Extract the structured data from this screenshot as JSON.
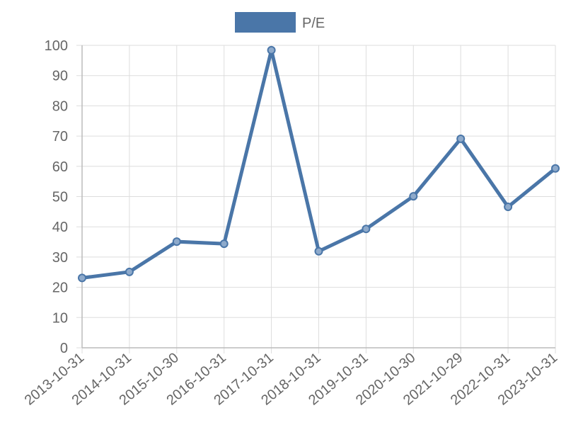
{
  "chart_data": {
    "type": "line",
    "categories": [
      "2013-10-31",
      "2014-10-31",
      "2015-10-30",
      "2016-10-31",
      "2017-10-31",
      "2018-10-31",
      "2019-10-31",
      "2020-10-30",
      "2021-10-29",
      "2022-10-31",
      "2023-10-31"
    ],
    "series": [
      {
        "name": "P/E",
        "color": "#4a76a8",
        "values": [
          23.1,
          25.1,
          35.1,
          34.4,
          98.4,
          31.9,
          39.3,
          50.1,
          69.1,
          46.6,
          59.3
        ]
      }
    ],
    "ylim": [
      0,
      100
    ],
    "yticks": [
      0,
      10,
      20,
      30,
      40,
      50,
      60,
      70,
      80,
      90,
      100
    ],
    "grid": true,
    "legend": "top"
  }
}
